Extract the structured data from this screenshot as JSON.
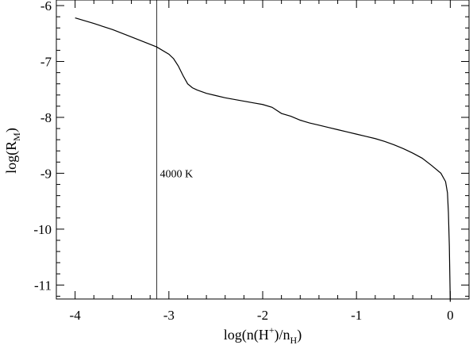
{
  "chart_data": {
    "type": "line",
    "title": "",
    "xlabel": {
      "main": "log(n(H",
      "sup": "+",
      "mid": ")/n",
      "sub": "H",
      "end": ")"
    },
    "ylabel": {
      "main": "log(R",
      "sub": "M",
      "end": ")"
    },
    "xlim": [
      -4.2,
      0.2
    ],
    "ylim": [
      -11.25,
      -5.9
    ],
    "x_ticks": [
      -4,
      -3,
      -2,
      -1,
      0
    ],
    "x_tick_labels": [
      "-4",
      "-3",
      "-2",
      "-1",
      "0"
    ],
    "y_ticks": [
      -11,
      -10,
      -9,
      -8,
      -7,
      -6
    ],
    "y_tick_labels": [
      "-11",
      "-10",
      "-9",
      "-8",
      "-7",
      "-6"
    ],
    "grid": false,
    "series": [
      {
        "x": [
          -4.0,
          -3.8,
          -3.6,
          -3.4,
          -3.25,
          -3.13,
          -3.0,
          -2.95,
          -2.9,
          -2.85,
          -2.8,
          -2.75,
          -2.7,
          -2.6,
          -2.5,
          -2.4,
          -2.3,
          -2.2,
          -2.1,
          -2.0,
          -1.9,
          -1.8,
          -1.7,
          -1.6,
          -1.5,
          -1.4,
          -1.3,
          -1.2,
          -1.1,
          -1.0,
          -0.9,
          -0.8,
          -0.7,
          -0.6,
          -0.5,
          -0.4,
          -0.3,
          -0.2,
          -0.1,
          -0.05,
          -0.03,
          -0.02,
          -0.01,
          0.0
        ],
        "y": [
          -6.22,
          -6.32,
          -6.43,
          -6.56,
          -6.66,
          -6.74,
          -6.87,
          -6.95,
          -7.08,
          -7.25,
          -7.4,
          -7.47,
          -7.51,
          -7.57,
          -7.61,
          -7.65,
          -7.68,
          -7.71,
          -7.74,
          -7.77,
          -7.82,
          -7.93,
          -7.98,
          -8.05,
          -8.1,
          -8.14,
          -8.18,
          -8.22,
          -8.26,
          -8.3,
          -8.34,
          -8.38,
          -8.43,
          -8.49,
          -8.56,
          -8.64,
          -8.73,
          -8.86,
          -9.0,
          -9.15,
          -9.35,
          -9.7,
          -10.3,
          -11.3
        ]
      }
    ],
    "vline": {
      "x": -3.13,
      "label": "4000 K",
      "label_y": -9.0
    }
  }
}
